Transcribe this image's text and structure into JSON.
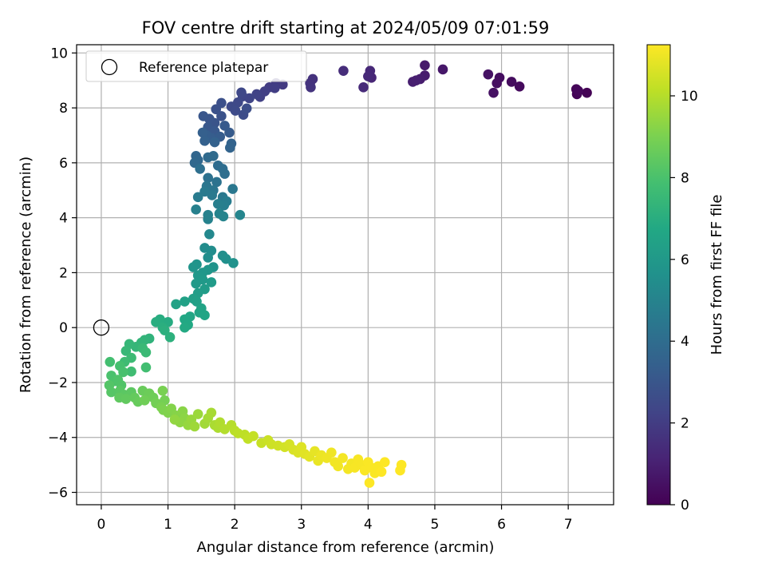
{
  "chart_data": {
    "type": "scatter",
    "title": "FOV centre drift starting at 2024/05/09 07:01:59",
    "xlabel": "Angular distance from reference (arcmin)",
    "ylabel": "Rotation from reference (arcmin)",
    "xlim": [
      -0.37,
      7.68
    ],
    "ylim": [
      -6.45,
      10.3
    ],
    "xticks": [
      0,
      1,
      2,
      3,
      4,
      5,
      6,
      7
    ],
    "yticks": [
      -6,
      -4,
      -2,
      0,
      2,
      4,
      6,
      8,
      10
    ],
    "grid": true,
    "legend": {
      "position": "top-left",
      "entries": [
        "Reference platepar"
      ]
    },
    "colorbar": {
      "label": "Hours from first FF file",
      "range": [
        0,
        11.25
      ],
      "ticks": [
        0,
        2,
        4,
        6,
        8,
        10
      ],
      "colormap": "viridis"
    },
    "reference_point": {
      "x": 0,
      "y": 0
    },
    "series": [
      {
        "color_by": "hours",
        "points": [
          [
            7.28,
            8.55,
            0.05
          ],
          [
            7.13,
            8.5,
            0.1
          ],
          [
            7.12,
            8.68,
            0.15
          ],
          [
            7.15,
            8.62,
            0.2
          ],
          [
            6.27,
            8.78,
            0.3
          ],
          [
            6.15,
            8.95,
            0.35
          ],
          [
            5.97,
            9.1,
            0.4
          ],
          [
            5.93,
            8.9,
            0.45
          ],
          [
            5.88,
            8.55,
            0.5
          ],
          [
            5.8,
            9.22,
            0.55
          ],
          [
            5.12,
            9.4,
            0.7
          ],
          [
            4.85,
            9.55,
            0.8
          ],
          [
            4.85,
            9.18,
            0.85
          ],
          [
            4.78,
            9.05,
            0.9
          ],
          [
            4.67,
            8.95,
            0.95
          ],
          [
            4.72,
            9.0,
            1.0
          ],
          [
            4.05,
            9.1,
            1.2
          ],
          [
            4.03,
            9.35,
            1.25
          ],
          [
            4.0,
            9.15,
            1.3
          ],
          [
            3.93,
            8.75,
            1.35
          ],
          [
            3.63,
            9.35,
            1.45
          ],
          [
            3.17,
            9.05,
            1.6
          ],
          [
            3.13,
            8.9,
            1.65
          ],
          [
            3.14,
            8.75,
            1.7
          ],
          [
            2.72,
            8.85,
            1.9
          ],
          [
            2.62,
            8.9,
            1.95
          ],
          [
            2.52,
            8.75,
            2.0
          ],
          [
            2.6,
            8.72,
            2.05
          ],
          [
            2.45,
            8.6,
            2.1
          ],
          [
            2.38,
            8.4,
            2.15
          ],
          [
            2.33,
            8.5,
            2.2
          ],
          [
            2.22,
            8.35,
            2.3
          ],
          [
            2.12,
            8.42,
            2.35
          ],
          [
            2.1,
            8.56,
            2.4
          ],
          [
            2.05,
            8.2,
            2.45
          ],
          [
            1.95,
            8.05,
            2.5
          ],
          [
            2.01,
            7.9,
            2.55
          ],
          [
            2.13,
            7.75,
            2.6
          ],
          [
            2.18,
            7.98,
            2.65
          ],
          [
            1.8,
            8.18,
            2.75
          ],
          [
            1.72,
            7.95,
            2.8
          ],
          [
            1.8,
            7.7,
            2.85
          ],
          [
            1.7,
            7.45,
            2.9
          ],
          [
            1.62,
            7.6,
            2.95
          ],
          [
            1.53,
            7.7,
            3.0
          ],
          [
            1.6,
            7.3,
            3.05
          ],
          [
            1.7,
            7.15,
            3.1
          ],
          [
            1.85,
            7.35,
            3.15
          ],
          [
            1.92,
            7.1,
            3.2
          ],
          [
            1.78,
            6.95,
            3.25
          ],
          [
            1.65,
            6.9,
            3.3
          ],
          [
            1.58,
            7.0,
            3.35
          ],
          [
            1.52,
            7.1,
            3.4
          ],
          [
            1.55,
            6.8,
            3.45
          ],
          [
            1.7,
            6.75,
            3.5
          ],
          [
            1.95,
            6.7,
            3.55
          ],
          [
            1.93,
            6.55,
            3.6
          ],
          [
            1.42,
            6.25,
            3.7
          ],
          [
            1.45,
            6.1,
            3.75
          ],
          [
            1.4,
            6.0,
            3.8
          ],
          [
            1.6,
            6.2,
            3.85
          ],
          [
            1.68,
            6.25,
            3.9
          ],
          [
            1.75,
            5.9,
            3.95
          ],
          [
            1.82,
            5.78,
            4.0
          ],
          [
            1.85,
            5.6,
            4.05
          ],
          [
            1.48,
            5.78,
            4.1
          ],
          [
            1.6,
            5.45,
            4.2
          ],
          [
            1.73,
            5.3,
            4.25
          ],
          [
            1.68,
            5.0,
            4.35
          ],
          [
            1.58,
            5.15,
            4.4
          ],
          [
            1.97,
            5.05,
            4.45
          ],
          [
            1.82,
            4.75,
            4.5
          ],
          [
            1.66,
            4.82,
            4.55
          ],
          [
            1.55,
            4.95,
            4.6
          ],
          [
            1.45,
            4.75,
            4.65
          ],
          [
            1.88,
            4.6,
            4.7
          ],
          [
            1.84,
            4.45,
            4.75
          ],
          [
            1.75,
            4.5,
            4.8
          ],
          [
            1.42,
            4.3,
            4.85
          ],
          [
            1.6,
            4.1,
            4.9
          ],
          [
            1.6,
            3.95,
            4.95
          ],
          [
            1.77,
            4.15,
            5.0
          ],
          [
            1.83,
            4.05,
            5.05
          ],
          [
            2.08,
            4.1,
            5.1
          ],
          [
            1.62,
            3.4,
            5.2
          ],
          [
            1.55,
            2.9,
            5.4
          ],
          [
            1.65,
            2.8,
            5.45
          ],
          [
            1.6,
            2.55,
            5.5
          ],
          [
            1.82,
            2.62,
            5.55
          ],
          [
            1.87,
            2.5,
            5.6
          ],
          [
            1.98,
            2.35,
            5.65
          ],
          [
            1.68,
            2.2,
            5.7
          ],
          [
            1.43,
            2.3,
            5.75
          ],
          [
            1.38,
            2.2,
            5.8
          ],
          [
            1.6,
            2.1,
            5.85
          ],
          [
            1.52,
            2.0,
            5.9
          ],
          [
            1.45,
            1.9,
            5.95
          ],
          [
            1.52,
            1.75,
            6.0
          ],
          [
            1.42,
            1.6,
            6.05
          ],
          [
            1.65,
            1.65,
            6.1
          ],
          [
            1.55,
            1.4,
            6.15
          ],
          [
            1.45,
            1.25,
            6.2
          ],
          [
            1.38,
            1.05,
            6.3
          ],
          [
            1.43,
            0.95,
            6.35
          ],
          [
            1.25,
            0.95,
            6.4
          ],
          [
            1.12,
            0.85,
            6.45
          ],
          [
            1.5,
            0.7,
            6.5
          ],
          [
            1.47,
            0.55,
            6.55
          ],
          [
            1.55,
            0.45,
            6.6
          ],
          [
            1.33,
            0.4,
            6.65
          ],
          [
            1.25,
            0.3,
            6.7
          ],
          [
            1.3,
            0.1,
            6.75
          ],
          [
            1.25,
            0.0,
            6.8
          ],
          [
            0.93,
            0.15,
            6.85
          ],
          [
            1.0,
            0.2,
            6.9
          ],
          [
            0.88,
            0.3,
            6.95
          ],
          [
            0.82,
            0.2,
            7.0
          ],
          [
            0.92,
            0.0,
            7.05
          ],
          [
            0.95,
            -0.1,
            7.1
          ],
          [
            1.03,
            -0.35,
            7.15
          ],
          [
            0.72,
            -0.4,
            7.25
          ],
          [
            0.65,
            -0.45,
            7.3
          ],
          [
            0.6,
            -0.55,
            7.35
          ],
          [
            0.52,
            -0.7,
            7.4
          ],
          [
            0.42,
            -0.6,
            7.45
          ],
          [
            0.37,
            -0.85,
            7.5
          ],
          [
            0.62,
            -0.75,
            7.55
          ],
          [
            0.67,
            -0.9,
            7.6
          ],
          [
            0.45,
            -1.1,
            7.65
          ],
          [
            0.35,
            -1.25,
            7.7
          ],
          [
            0.45,
            -1.6,
            7.75
          ],
          [
            0.67,
            -1.45,
            7.8
          ],
          [
            0.13,
            -1.25,
            7.85
          ],
          [
            0.28,
            -1.4,
            7.9
          ],
          [
            0.33,
            -1.62,
            7.95
          ],
          [
            0.15,
            -1.75,
            8.0
          ],
          [
            0.2,
            -1.95,
            8.05
          ],
          [
            0.25,
            -1.9,
            8.1
          ],
          [
            0.3,
            -2.1,
            8.15
          ],
          [
            0.12,
            -2.1,
            8.2
          ],
          [
            0.15,
            -2.35,
            8.25
          ],
          [
            0.28,
            -2.3,
            8.3
          ],
          [
            0.35,
            -2.45,
            8.35
          ],
          [
            0.45,
            -2.35,
            8.4
          ],
          [
            0.27,
            -2.55,
            8.45
          ],
          [
            0.37,
            -2.6,
            8.5
          ],
          [
            0.5,
            -2.55,
            8.55
          ],
          [
            0.55,
            -2.7,
            8.6
          ],
          [
            0.62,
            -2.3,
            8.65
          ],
          [
            0.72,
            -2.4,
            8.7
          ],
          [
            0.78,
            -2.55,
            8.75
          ],
          [
            0.65,
            -2.65,
            8.8
          ],
          [
            0.82,
            -2.75,
            8.85
          ],
          [
            0.95,
            -2.65,
            8.9
          ],
          [
            0.92,
            -2.3,
            8.95
          ],
          [
            0.9,
            -2.9,
            9.0
          ],
          [
            0.93,
            -3.0,
            9.05
          ],
          [
            1.0,
            -3.1,
            9.1
          ],
          [
            1.05,
            -2.95,
            9.15
          ],
          [
            1.12,
            -3.2,
            9.2
          ],
          [
            1.22,
            -3.05,
            9.25
          ],
          [
            1.25,
            -3.3,
            9.3
          ],
          [
            1.18,
            -3.45,
            9.35
          ],
          [
            1.1,
            -3.35,
            9.4
          ],
          [
            1.3,
            -3.55,
            9.45
          ],
          [
            1.35,
            -3.35,
            9.5
          ],
          [
            1.45,
            -3.15,
            9.55
          ],
          [
            1.4,
            -3.6,
            9.6
          ],
          [
            1.55,
            -3.5,
            9.65
          ],
          [
            1.6,
            -3.3,
            9.7
          ],
          [
            1.65,
            -3.1,
            9.75
          ],
          [
            1.7,
            -3.55,
            9.8
          ],
          [
            1.75,
            -3.65,
            9.85
          ],
          [
            1.78,
            -3.45,
            9.9
          ],
          [
            1.85,
            -3.7,
            9.95
          ],
          [
            1.95,
            -3.55,
            10.0
          ],
          [
            2.0,
            -3.75,
            10.05
          ],
          [
            2.05,
            -3.85,
            10.1
          ],
          [
            2.15,
            -3.9,
            10.15
          ],
          [
            2.2,
            -4.05,
            10.2
          ],
          [
            2.28,
            -3.95,
            10.25
          ],
          [
            2.4,
            -4.2,
            10.3
          ],
          [
            2.5,
            -4.1,
            10.35
          ],
          [
            2.55,
            -4.25,
            10.4
          ],
          [
            2.65,
            -4.3,
            10.45
          ],
          [
            2.75,
            -4.35,
            10.5
          ],
          [
            2.82,
            -4.25,
            10.55
          ],
          [
            2.88,
            -4.45,
            10.6
          ],
          [
            2.95,
            -4.55,
            10.65
          ],
          [
            3.0,
            -4.35,
            10.7
          ],
          [
            3.05,
            -4.6,
            10.75
          ],
          [
            3.12,
            -4.7,
            10.8
          ],
          [
            3.2,
            -4.5,
            10.85
          ],
          [
            3.25,
            -4.85,
            10.9
          ],
          [
            3.3,
            -4.65,
            10.95
          ],
          [
            3.38,
            -4.75,
            11.0
          ],
          [
            3.45,
            -4.55,
            11.0
          ],
          [
            3.5,
            -4.9,
            11.05
          ],
          [
            3.55,
            -5.05,
            11.05
          ],
          [
            3.62,
            -4.75,
            11.1
          ],
          [
            3.7,
            -5.15,
            11.1
          ],
          [
            3.75,
            -4.95,
            11.1
          ],
          [
            3.8,
            -5.1,
            11.15
          ],
          [
            3.85,
            -4.8,
            11.15
          ],
          [
            3.9,
            -5.0,
            11.15
          ],
          [
            3.95,
            -5.2,
            11.2
          ],
          [
            4.0,
            -4.9,
            11.2
          ],
          [
            4.05,
            -5.1,
            11.2
          ],
          [
            4.1,
            -5.3,
            11.2
          ],
          [
            4.15,
            -5.05,
            11.2
          ],
          [
            4.02,
            -5.65,
            11.25
          ],
          [
            4.2,
            -5.25,
            11.25
          ],
          [
            4.25,
            -4.9,
            11.25
          ],
          [
            4.5,
            -5.0,
            11.25
          ],
          [
            4.48,
            -5.2,
            11.25
          ]
        ]
      }
    ]
  }
}
